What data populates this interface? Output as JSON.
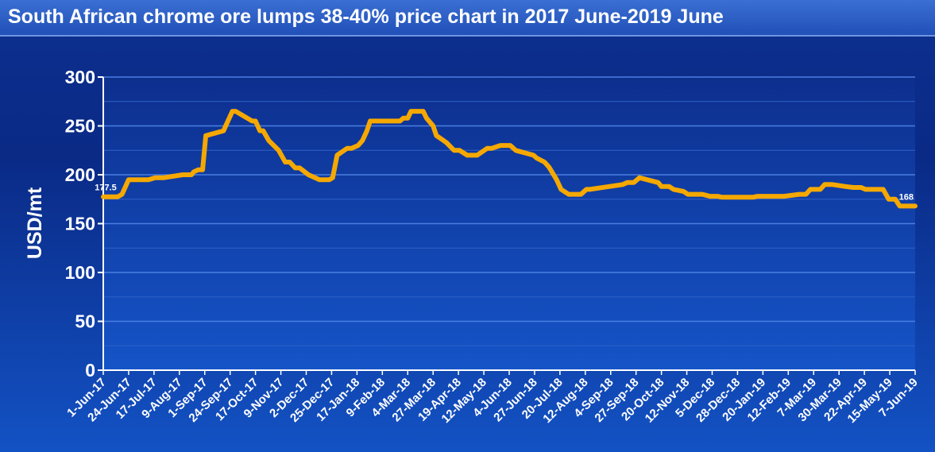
{
  "title": "South African chrome ore lumps 38-40% price chart in 2017 June-2019 June",
  "chart_data": {
    "type": "line",
    "ylabel": "USD/mt",
    "xlabel": "",
    "ylim": [
      0,
      300
    ],
    "yticks": [
      0,
      50,
      100,
      150,
      200,
      250,
      300
    ],
    "grid": true,
    "line_color": "#f5a800",
    "x_ticks": [
      "1-Jun-17",
      "24-Jun-17",
      "17-Jul-17",
      "9-Aug-17",
      "1-Sep-17",
      "24-Sep-17",
      "17-Oct-17",
      "9-Nov-17",
      "2-Dec-17",
      "25-Dec-17",
      "17-Jan-18",
      "9-Feb-18",
      "4-Mar-18",
      "27-Mar-18",
      "19-Apr-18",
      "12-May-18",
      "4-Jun-18",
      "27-Jun-18",
      "20-Jul-18",
      "12-Aug-18",
      "4-Sep-18",
      "27-Sep-18",
      "20-Oct-18",
      "12-Nov-18",
      "5-Dec-18",
      "28-Dec-18",
      "20-Jan-19",
      "12-Feb-19",
      "7-Mar-19",
      "30-Mar-19",
      "22-Apr-19",
      "15-May-19",
      "7-Jun-19"
    ],
    "data_labels": [
      {
        "x": "2017-06-01",
        "text": "177.5"
      },
      {
        "x": "2019-06-07",
        "text": "168"
      }
    ],
    "series": [
      {
        "x": [
          "2017-06-01",
          "2017-06-14",
          "2017-06-18",
          "2017-06-24",
          "2017-06-28",
          "2017-07-12",
          "2017-07-18",
          "2017-07-26",
          "2017-08-12",
          "2017-08-16",
          "2017-08-20",
          "2017-08-22",
          "2017-08-26",
          "2017-08-30",
          "2017-09-02",
          "2017-09-18",
          "2017-09-20",
          "2017-09-26",
          "2017-09-29",
          "2017-10-14",
          "2017-10-17",
          "2017-10-21",
          "2017-10-24",
          "2017-10-29",
          "2017-11-07",
          "2017-11-13",
          "2017-11-17",
          "2017-11-22",
          "2017-11-26",
          "2017-12-04",
          "2017-12-14",
          "2017-12-18",
          "2017-12-23",
          "2017-12-26",
          "2017-12-30",
          "2018-01-08",
          "2018-01-12",
          "2018-01-18",
          "2018-01-22",
          "2018-01-26",
          "2018-01-29",
          "2018-02-25",
          "2018-02-28",
          "2018-03-04",
          "2018-03-07",
          "2018-03-18",
          "2018-03-21",
          "2018-03-27",
          "2018-03-30",
          "2018-04-03",
          "2018-04-08",
          "2018-04-15",
          "2018-04-20",
          "2018-04-27",
          "2018-05-06",
          "2018-05-15",
          "2018-05-19",
          "2018-05-27",
          "2018-06-05",
          "2018-06-10",
          "2018-06-26",
          "2018-06-29",
          "2018-07-06",
          "2018-07-10",
          "2018-07-17",
          "2018-07-21",
          "2018-07-28",
          "2018-08-02",
          "2018-08-08",
          "2018-08-13",
          "2018-08-16",
          "2018-09-15",
          "2018-09-19",
          "2018-09-25",
          "2018-09-30",
          "2018-10-17",
          "2018-10-20",
          "2018-10-27",
          "2018-10-31",
          "2018-11-09",
          "2018-11-13",
          "2018-11-26",
          "2018-12-03",
          "2018-12-10",
          "2018-12-14",
          "2018-12-31",
          "2019-01-11",
          "2019-01-15",
          "2019-02-08",
          "2019-02-22",
          "2019-02-28",
          "2019-03-04",
          "2019-03-13",
          "2019-03-17",
          "2019-03-24",
          "2019-04-05",
          "2019-04-12",
          "2019-04-19",
          "2019-04-23",
          "2019-05-09",
          "2019-05-14",
          "2019-05-20",
          "2019-05-24",
          "2019-05-28",
          "2019-06-07"
        ],
        "values": [
          177.5,
          177.5,
          180,
          195,
          195,
          195,
          197,
          197,
          200,
          200,
          200,
          203,
          205,
          205,
          240,
          245,
          250,
          265,
          265,
          255,
          255,
          245,
          245,
          235,
          225,
          213,
          213,
          207,
          207,
          200,
          195,
          195,
          195,
          197,
          220,
          227,
          227,
          230,
          235,
          245,
          255,
          255,
          258,
          258,
          265,
          265,
          258,
          250,
          240,
          237,
          233,
          225,
          225,
          220,
          220,
          227,
          227,
          230,
          230,
          225,
          220,
          217,
          213,
          208,
          195,
          185,
          180,
          180,
          180,
          185,
          185,
          190,
          192,
          192,
          197,
          192,
          188,
          188,
          185,
          183,
          180,
          180,
          178,
          178,
          177,
          177,
          177,
          178,
          178,
          180,
          180,
          185,
          185,
          190,
          190,
          188,
          187,
          187,
          185,
          185,
          175,
          175,
          168,
          168,
          168
        ]
      }
    ]
  }
}
